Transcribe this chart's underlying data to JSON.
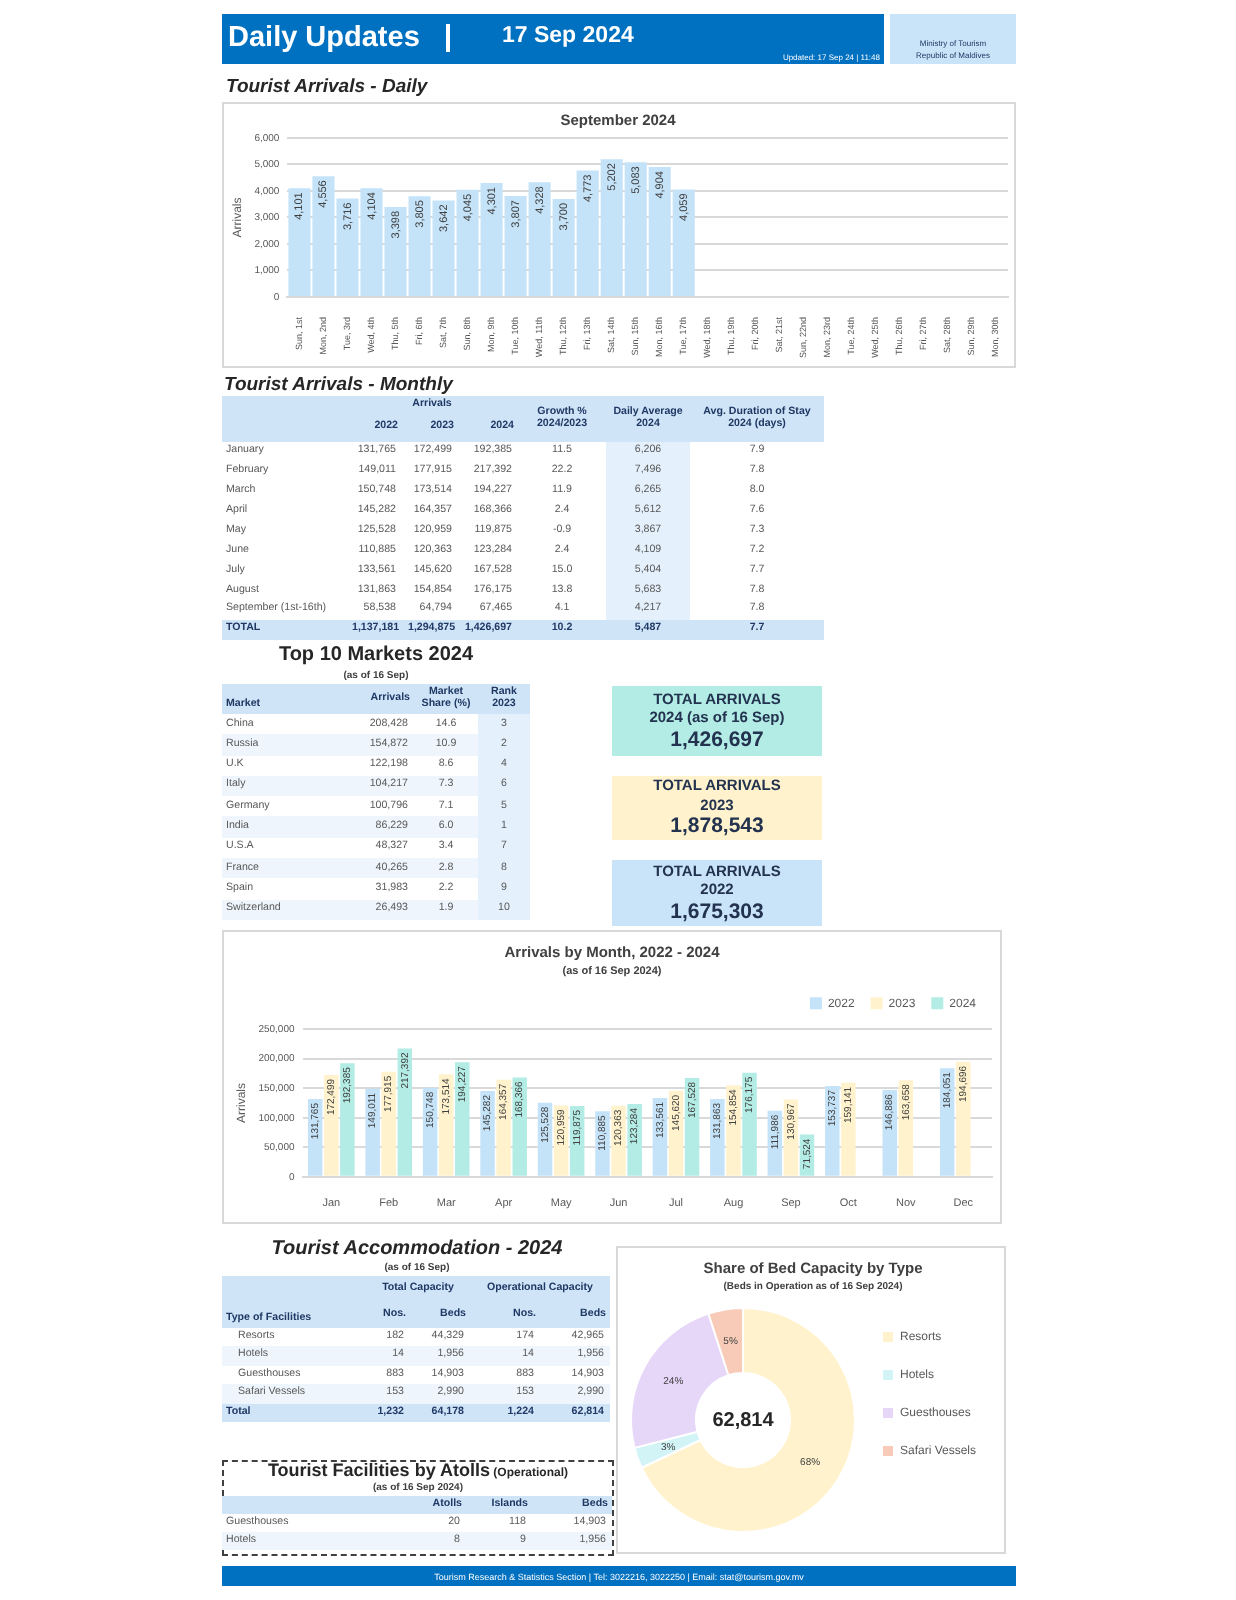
{
  "chart_data": [
    {
      "type": "other",
      "title": "Daily Updates",
      "subtitle": "17 Sep 2024",
      "annotations": [
        "Updated: 17 Sep 24 | 11:48",
        "Ministry of Tourism",
        "Republic of Maldives"
      ]
    },
    {
      "type": "bar",
      "title": "Tourist Arrivals - Daily",
      "subtitle": "September 2024",
      "ylabel": "Arrivals",
      "categories": [
        "Sun, 1st",
        "Mon, 2nd",
        "Tue, 3rd",
        "Wed, 4th",
        "Thu, 5th",
        "Fri, 6th",
        "Sat, 7th",
        "Sun, 8th",
        "Mon, 9th",
        "Tue, 10th",
        "Wed, 11th",
        "Thu, 12th",
        "Fri, 13th",
        "Sat, 14th",
        "Sun, 15th",
        "Mon, 16th",
        "Tue, 17th",
        "Wed, 18th",
        "Thu, 19th",
        "Fri, 20th",
        "Sat, 21st",
        "Sun, 22nd",
        "Mon, 23rd",
        "Tue, 24th",
        "Wed, 25th",
        "Thu, 26th",
        "Fri, 27th",
        "Sat, 28th",
        "Sun, 29th",
        "Mon, 30th"
      ],
      "values": [
        4101,
        4556,
        3716,
        4104,
        3398,
        3805,
        3642,
        4045,
        4301,
        3807,
        4328,
        3700,
        4773,
        5202,
        5083,
        4904,
        4059,
        null,
        null,
        null,
        null,
        null,
        null,
        null,
        null,
        null,
        null,
        null,
        null,
        null
      ],
      "value_labels": [
        "4,101",
        "4,556",
        "3,716",
        "4,104",
        "3,398",
        "3,805",
        "3,642",
        "4,045",
        "4,301",
        "3,807",
        "4,328",
        "3,700",
        "4,773",
        "5,202",
        "5,083",
        "4,904",
        "4,059",
        null,
        null,
        null,
        null,
        null,
        null,
        null,
        null,
        null,
        null,
        null,
        null,
        null
      ],
      "color": "#c5e3f8",
      "ylim": [
        0,
        6000
      ],
      "yticks": [
        0,
        {
          "value": 1000,
          "label": "1,000"
        },
        {
          "value": 2000,
          "label": "2,000"
        },
        {
          "value": 3000,
          "label": "3,000"
        },
        {
          "value": 4000,
          "label": "4,000"
        },
        {
          "value": 5000,
          "label": "5,000"
        },
        {
          "value": 6000,
          "label": "6,000"
        }
      ],
      "grid": "y"
    },
    {
      "type": "other",
      "title": "Tourist Arrivals - Monthly",
      "annotations": [
        "Arrivals"
      ],
      "categories": [
        "2022",
        "2023",
        "2024",
        "Growth % 2024/2023",
        "Daily Average 2024",
        "Avg. Duration of Stay 2024 (days)"
      ],
      "y_categories": [
        "January",
        "February",
        "March",
        "April",
        "May",
        "June",
        "July",
        "August",
        "September (1st-16th)",
        "TOTAL"
      ],
      "cell_labels": [
        [
          "131,765",
          "172,499",
          "192,385",
          "11.5",
          "6,206",
          "7.9"
        ],
        [
          "149,011",
          "177,915",
          "217,392",
          "22.2",
          "7,496",
          "7.8"
        ],
        [
          "150,748",
          "173,514",
          "194,227",
          "11.9",
          "6,265",
          "8.0"
        ],
        [
          "145,282",
          "164,357",
          "168,366",
          "2.4",
          "5,612",
          "7.6"
        ],
        [
          "125,528",
          "120,959",
          "119,875",
          "-0.9",
          "3,867",
          "7.3"
        ],
        [
          "110,885",
          "120,363",
          "123,284",
          "2.4",
          "4,109",
          "7.2"
        ],
        [
          "133,561",
          "145,620",
          "167,528",
          "15.0",
          "5,404",
          "7.7"
        ],
        [
          "131,863",
          "154,854",
          "176,175",
          "13.8",
          "5,683",
          "7.8"
        ],
        [
          "58,538",
          "64,794",
          "67,465",
          "4.1",
          "4,217",
          "7.8"
        ],
        [
          "1,137,181",
          "1,294,875",
          "1,426,697",
          "10.2",
          "5,487",
          "7.7"
        ]
      ]
    },
    {
      "type": "other",
      "title": "Top 10 Markets 2024",
      "subtitle": "(as of 16 Sep)",
      "ylabel": "Market",
      "categories": [
        "Arrivals",
        "Market Share (%)",
        "Rank 2023"
      ],
      "y_categories": [
        "China",
        "Russia",
        "U.K",
        "Italy",
        "Germany",
        "India",
        "U.S.A",
        "France",
        "Spain",
        "Switzerland"
      ],
      "cell_labels": [
        [
          "208,428",
          "14.6",
          "3"
        ],
        [
          "154,872",
          "10.9",
          "2"
        ],
        [
          "122,198",
          "8.6",
          "4"
        ],
        [
          "104,217",
          "7.3",
          "6"
        ],
        [
          "100,796",
          "7.1",
          "5"
        ],
        [
          "86,229",
          "6.0",
          "1"
        ],
        [
          "48,327",
          "3.4",
          "7"
        ],
        [
          "40,265",
          "2.8",
          "8"
        ],
        [
          "31,983",
          "2.2",
          "9"
        ],
        [
          "26,493",
          "1.9",
          "10"
        ]
      ]
    },
    {
      "type": "other",
      "categories": [
        "TOTAL ARRIVALS\n2024 (as of 16 Sep)",
        "TOTAL ARRIVALS\n2023",
        "TOTAL ARRIVALS\n2022"
      ],
      "value_labels": [
        "1,426,697",
        "1,878,543",
        "1,675,303"
      ],
      "colors": [
        "#b3ece5",
        "#fff2cc",
        "#c9e3f8"
      ]
    },
    {
      "type": "bar",
      "title": "Arrivals by Month, 2022 - 2024",
      "subtitle": "(as of 16 Sep 2024)",
      "ylabel": "Arrivals",
      "categories": [
        "Jan",
        "Feb",
        "Mar",
        "Apr",
        "May",
        "Jun",
        "Jul",
        "Aug",
        "Sep",
        "Oct",
        "Nov",
        "Dec"
      ],
      "series": [
        {
          "name": "2022",
          "color": "#c5e3f8",
          "values": [
            131765,
            149011,
            150748,
            145282,
            125528,
            110885,
            133561,
            131863,
            111986,
            153737,
            146886,
            184051
          ],
          "value_labels": [
            "131,765",
            "149,011",
            "150,748",
            "145,282",
            "125,528",
            "110,885",
            "133,561",
            "131,863",
            "111,986",
            "153,737",
            "146,886",
            "184,051"
          ]
        },
        {
          "name": "2023",
          "color": "#fff2cc",
          "values": [
            172499,
            177915,
            173514,
            164357,
            120959,
            120363,
            145620,
            154854,
            130967,
            159141,
            163658,
            194696
          ],
          "value_labels": [
            "172,499",
            "177,915",
            "173,514",
            "164,357",
            "120,959",
            "120,363",
            "145,620",
            "154,854",
            "130,967",
            "159,141",
            "163,658",
            "194,696"
          ]
        },
        {
          "name": "2024",
          "color": "#b3ece5",
          "values": [
            192385,
            217392,
            194227,
            168366,
            119875,
            123284,
            167528,
            176175,
            71524,
            null,
            null,
            null
          ],
          "value_labels": [
            "192,385",
            "217,392",
            "194,227",
            "168,366",
            "119,875",
            "123,284",
            "167,528",
            "176,175",
            "71,524",
            null,
            null,
            null
          ]
        }
      ],
      "ylim": [
        0,
        250000
      ],
      "yticks": [
        0,
        {
          "value": 50000,
          "label": "50,000"
        },
        {
          "value": 100000,
          "label": "100,000"
        },
        {
          "value": 150000,
          "label": "150,000"
        },
        {
          "value": 200000,
          "label": "200,000"
        },
        {
          "value": 250000,
          "label": "250,000"
        }
      ],
      "grid": "y",
      "legend": "top right"
    },
    {
      "type": "other",
      "title": "Tourist Accommodation - 2024",
      "subtitle": "(as of 16 Sep)",
      "ylabel": "Type of Facilities",
      "annotations": [
        "Total Capacity",
        "Operational Capacity"
      ],
      "categories": [
        "Nos.",
        "Beds",
        "Nos.",
        "Beds"
      ],
      "y_categories": [
        "Resorts",
        "Hotels",
        "Guesthouses",
        "Safari Vessels",
        "Total"
      ],
      "cell_labels": [
        [
          "182",
          "44,329",
          "174",
          "42,965"
        ],
        [
          "14",
          "1,956",
          "14",
          "1,956"
        ],
        [
          "883",
          "14,903",
          "883",
          "14,903"
        ],
        [
          "153",
          "2,990",
          "153",
          "2,990"
        ],
        [
          "1,232",
          "64,178",
          "1,224",
          "62,814"
        ]
      ]
    },
    {
      "type": "donut",
      "title": "Share of Bed Capacity by Type",
      "subtitle": "(Beds in Operation as of 16 Sep 2024)",
      "categories": [
        "Resorts",
        "Hotels",
        "Guesthouses",
        "Safari Vessels"
      ],
      "values": [
        68,
        3,
        24,
        5
      ],
      "colors": [
        "#fff2cc",
        "#d2f4f7",
        "#e6d6f8",
        "#f8cbb8"
      ],
      "value_labels": [
        "68%",
        "3%",
        "24%",
        "5%"
      ],
      "annotations": [
        "62,814"
      ],
      "legend": "right"
    },
    {
      "type": "other",
      "title": "Tourist Facilities by Atolls",
      "subtitle": "(Operational)",
      "annotations": [
        "(as of 16 Sep 2024)"
      ],
      "categories": [
        "Atolls",
        "Islands",
        "Beds"
      ],
      "y_categories": [
        "Guesthouses",
        "Hotels"
      ],
      "cell_labels": [
        [
          "20",
          "118",
          "14,903"
        ],
        [
          "8",
          "9",
          "1,956"
        ]
      ]
    },
    {
      "type": "other",
      "annotations": [
        "Tourism Research & Statistics Section | Tel: 3022216, 3022250 | Email: stat@tourism.gov.mv"
      ]
    }
  ]
}
